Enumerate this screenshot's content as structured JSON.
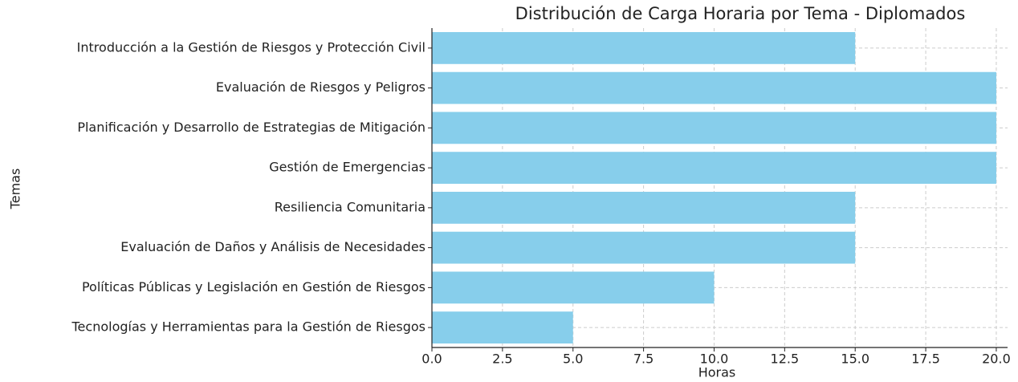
{
  "chart_data": {
    "type": "barh",
    "title": "Distribución de Carga Horaria por Tema - Diplomados",
    "xlabel": "Horas",
    "ylabel": "Temas",
    "categories": [
      "Introducción a la Gestión de Riesgos y Protección Civil",
      "Evaluación de Riesgos y Peligros",
      "Planificación y Desarrollo de Estrategias de Mitigación",
      "Gestión de Emergencias",
      "Resiliencia Comunitaria",
      "Evaluación de Daños y Análisis de Necesidades",
      "Políticas Públicas y Legislación en Gestión de Riesgos",
      "Tecnologías y Herramientas para la Gestión de Riesgos"
    ],
    "values": [
      15,
      20,
      20,
      20,
      15,
      15,
      10,
      5
    ],
    "color": "#87ceeb",
    "xlim": [
      0,
      20.4
    ],
    "xticks": [
      {
        "value": 0,
        "label": "0.0"
      },
      2.5,
      {
        "value": 5,
        "label": "5.0"
      },
      7.5,
      {
        "value": 10,
        "label": "10.0"
      },
      12.5,
      {
        "value": 15,
        "label": "15.0"
      },
      17.5,
      {
        "value": 20,
        "label": "20.0"
      }
    ],
    "grid": true
  }
}
